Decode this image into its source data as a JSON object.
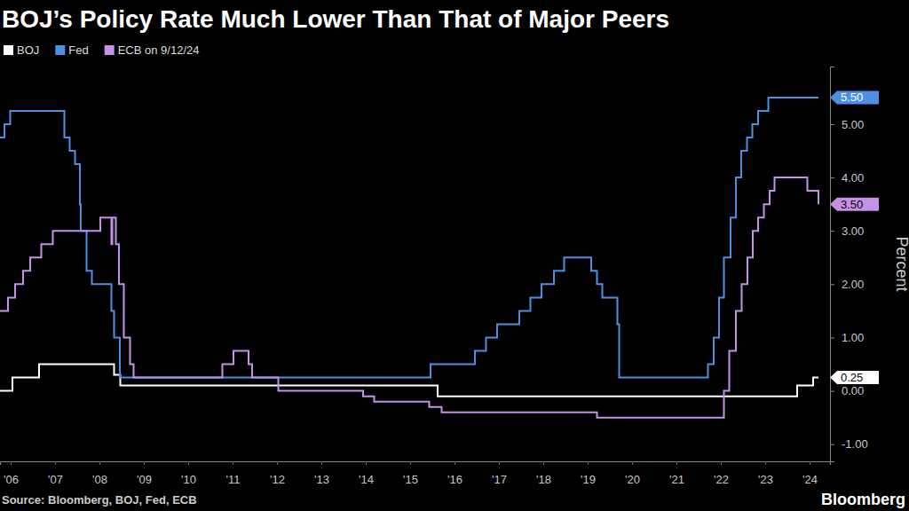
{
  "chart_data": {
    "type": "line",
    "title": "BOJ’s Policy Rate Much Lower Than That of Major Peers",
    "y_label": "Percent",
    "source": "Source: Bloomberg, BOJ, Fed, ECB",
    "brand": "Bloomberg",
    "line_style": "step",
    "grid": false,
    "legend": "top-left",
    "xlim": [
      2006.26,
      2024.96
    ],
    "xticks": [
      {
        "value": 2006.5,
        "label": "'06"
      },
      {
        "value": 2007.5,
        "label": "'07"
      },
      {
        "value": 2008.5,
        "label": "'08"
      },
      {
        "value": 2009.5,
        "label": "'09"
      },
      {
        "value": 2010.5,
        "label": "'10"
      },
      {
        "value": 2011.5,
        "label": "'11"
      },
      {
        "value": 2012.5,
        "label": "'12"
      },
      {
        "value": 2013.5,
        "label": "'13"
      },
      {
        "value": 2014.5,
        "label": "'14"
      },
      {
        "value": 2015.5,
        "label": "'15"
      },
      {
        "value": 2016.5,
        "label": "'16"
      },
      {
        "value": 2017.5,
        "label": "'17"
      },
      {
        "value": 2018.5,
        "label": "'18"
      },
      {
        "value": 2019.5,
        "label": "'19"
      },
      {
        "value": 2020.5,
        "label": "'20"
      },
      {
        "value": 2021.5,
        "label": "'21"
      },
      {
        "value": 2022.5,
        "label": "'22"
      },
      {
        "value": 2023.5,
        "label": "'23"
      },
      {
        "value": 2024.5,
        "label": "'24"
      }
    ],
    "ylim": [
      -1.32,
      6.08
    ],
    "yticks": [
      {
        "value": -1,
        "label": "-1.00"
      },
      {
        "value": 0,
        "label": "0.00"
      },
      {
        "value": 1,
        "label": "1.00"
      },
      {
        "value": 2,
        "label": "2.00"
      },
      {
        "value": 3,
        "label": "3.00"
      },
      {
        "value": 4,
        "label": "4.00"
      },
      {
        "value": 5,
        "label": "5.00"
      }
    ],
    "series": [
      {
        "name": "BOJ",
        "color": "#ffffff",
        "end_label": "0.25",
        "x": [
          2006.26,
          2006.54,
          2007.14,
          2008.83,
          2008.97,
          2016.12,
          2024.22,
          2024.58,
          2024.7
        ],
        "values": [
          0,
          0.25,
          0.5,
          0.3,
          0.1,
          -0.1,
          0.1,
          0.25,
          0.25
        ]
      },
      {
        "name": "Fed",
        "color": "#4d90e3",
        "end_label": "5.50",
        "x": [
          2006.26,
          2006.36,
          2006.49,
          2007.71,
          2007.83,
          2007.95,
          2008.06,
          2008.08,
          2008.21,
          2008.33,
          2008.77,
          2008.83,
          2008.96,
          2015.96,
          2016.96,
          2017.21,
          2017.46,
          2017.96,
          2018.21,
          2018.46,
          2018.74,
          2018.97,
          2019.58,
          2019.71,
          2019.83,
          2020.17,
          2020.21,
          2022.21,
          2022.34,
          2022.46,
          2022.57,
          2022.72,
          2022.84,
          2022.96,
          2023.09,
          2023.21,
          2023.34,
          2023.57,
          2024.7
        ],
        "values": [
          4.75,
          5.0,
          5.25,
          4.75,
          4.5,
          4.25,
          3.5,
          3.0,
          2.25,
          2.0,
          1.5,
          1.0,
          0.25,
          0.5,
          0.75,
          1.0,
          1.25,
          1.5,
          1.75,
          2.0,
          2.25,
          2.5,
          2.25,
          2.0,
          1.75,
          1.25,
          0.25,
          0.5,
          1.0,
          1.75,
          2.5,
          3.25,
          4.0,
          4.5,
          4.75,
          5.0,
          5.25,
          5.5,
          5.5
        ]
      },
      {
        "name": "ECB on 9/12/24",
        "color": "#c591e8",
        "end_label": "3.50",
        "x": [
          2006.26,
          2006.44,
          2006.6,
          2006.78,
          2006.94,
          2007.19,
          2007.45,
          2008.52,
          2008.77,
          2008.79,
          2008.87,
          2008.94,
          2009.05,
          2009.19,
          2009.27,
          2011.27,
          2011.52,
          2011.86,
          2011.94,
          2012.53,
          2014.44,
          2014.69,
          2015.93,
          2016.21,
          2019.71,
          2022.57,
          2022.69,
          2022.84,
          2022.97,
          2023.1,
          2023.22,
          2023.34,
          2023.47,
          2023.6,
          2023.71,
          2024.45,
          2024.7
        ],
        "values": [
          1.5,
          1.75,
          2.0,
          2.25,
          2.5,
          2.75,
          3.0,
          3.25,
          2.75,
          3.25,
          2.75,
          2.0,
          1.0,
          0.5,
          0.25,
          0.5,
          0.75,
          0.5,
          0.25,
          0.0,
          -0.1,
          -0.2,
          -0.3,
          -0.4,
          -0.5,
          0.0,
          0.75,
          1.5,
          2.0,
          2.5,
          3.0,
          3.25,
          3.5,
          3.75,
          4.0,
          3.75,
          3.5
        ]
      }
    ]
  }
}
